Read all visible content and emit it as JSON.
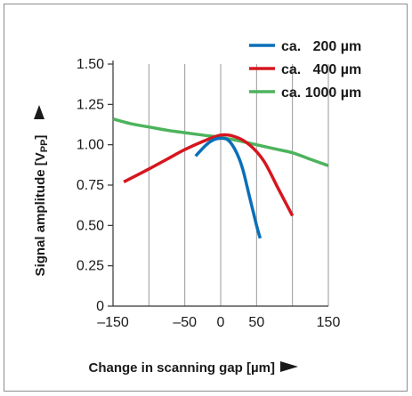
{
  "chart_data": {
    "type": "line",
    "xlabel": "Change in scanning gap [µm]",
    "ylabel": "Signal amplitude [V",
    "ylabel_subscript": "PP",
    "ylabel_close": "]",
    "xlim": [
      -150,
      150
    ],
    "ylim": [
      0,
      1.5
    ],
    "x_ticks": [
      "–150",
      "–50",
      "0",
      "50",
      "150"
    ],
    "x_tick_values": [
      -150,
      -50,
      0,
      50,
      150
    ],
    "y_ticks": [
      "0",
      "0.25",
      "0.50",
      "0.75",
      "1.00",
      "1.25",
      "1.50"
    ],
    "y_tick_values": [
      0,
      0.25,
      0.5,
      0.75,
      1.0,
      1.25,
      1.5
    ],
    "grid_x": [
      -100,
      -50,
      0,
      50,
      100,
      150
    ],
    "grid": true,
    "legend_placement": "top-right",
    "series": [
      {
        "name": "ca.   200 µm",
        "color": "#0a6fb8",
        "x": [
          -35,
          -20,
          -10,
          0,
          10,
          20,
          30,
          40,
          50,
          55
        ],
        "y": [
          0.93,
          1.0,
          1.03,
          1.04,
          1.03,
          0.97,
          0.86,
          0.68,
          0.5,
          0.42
        ]
      },
      {
        "name": "ca.   400 µm",
        "color": "#d6161f",
        "x": [
          -135,
          -100,
          -75,
          -50,
          -25,
          0,
          20,
          40,
          60,
          80,
          100
        ],
        "y": [
          0.77,
          0.85,
          0.91,
          0.97,
          1.02,
          1.06,
          1.05,
          1.0,
          0.9,
          0.73,
          0.56
        ]
      },
      {
        "name": "ca. 1000 µm",
        "color": "#4db35d",
        "x": [
          -150,
          -125,
          -100,
          -75,
          -50,
          -25,
          0,
          25,
          50,
          75,
          100,
          125,
          150
        ],
        "y": [
          1.16,
          1.13,
          1.11,
          1.09,
          1.075,
          1.06,
          1.045,
          1.025,
          1.0,
          0.975,
          0.95,
          0.91,
          0.87
        ]
      }
    ]
  }
}
